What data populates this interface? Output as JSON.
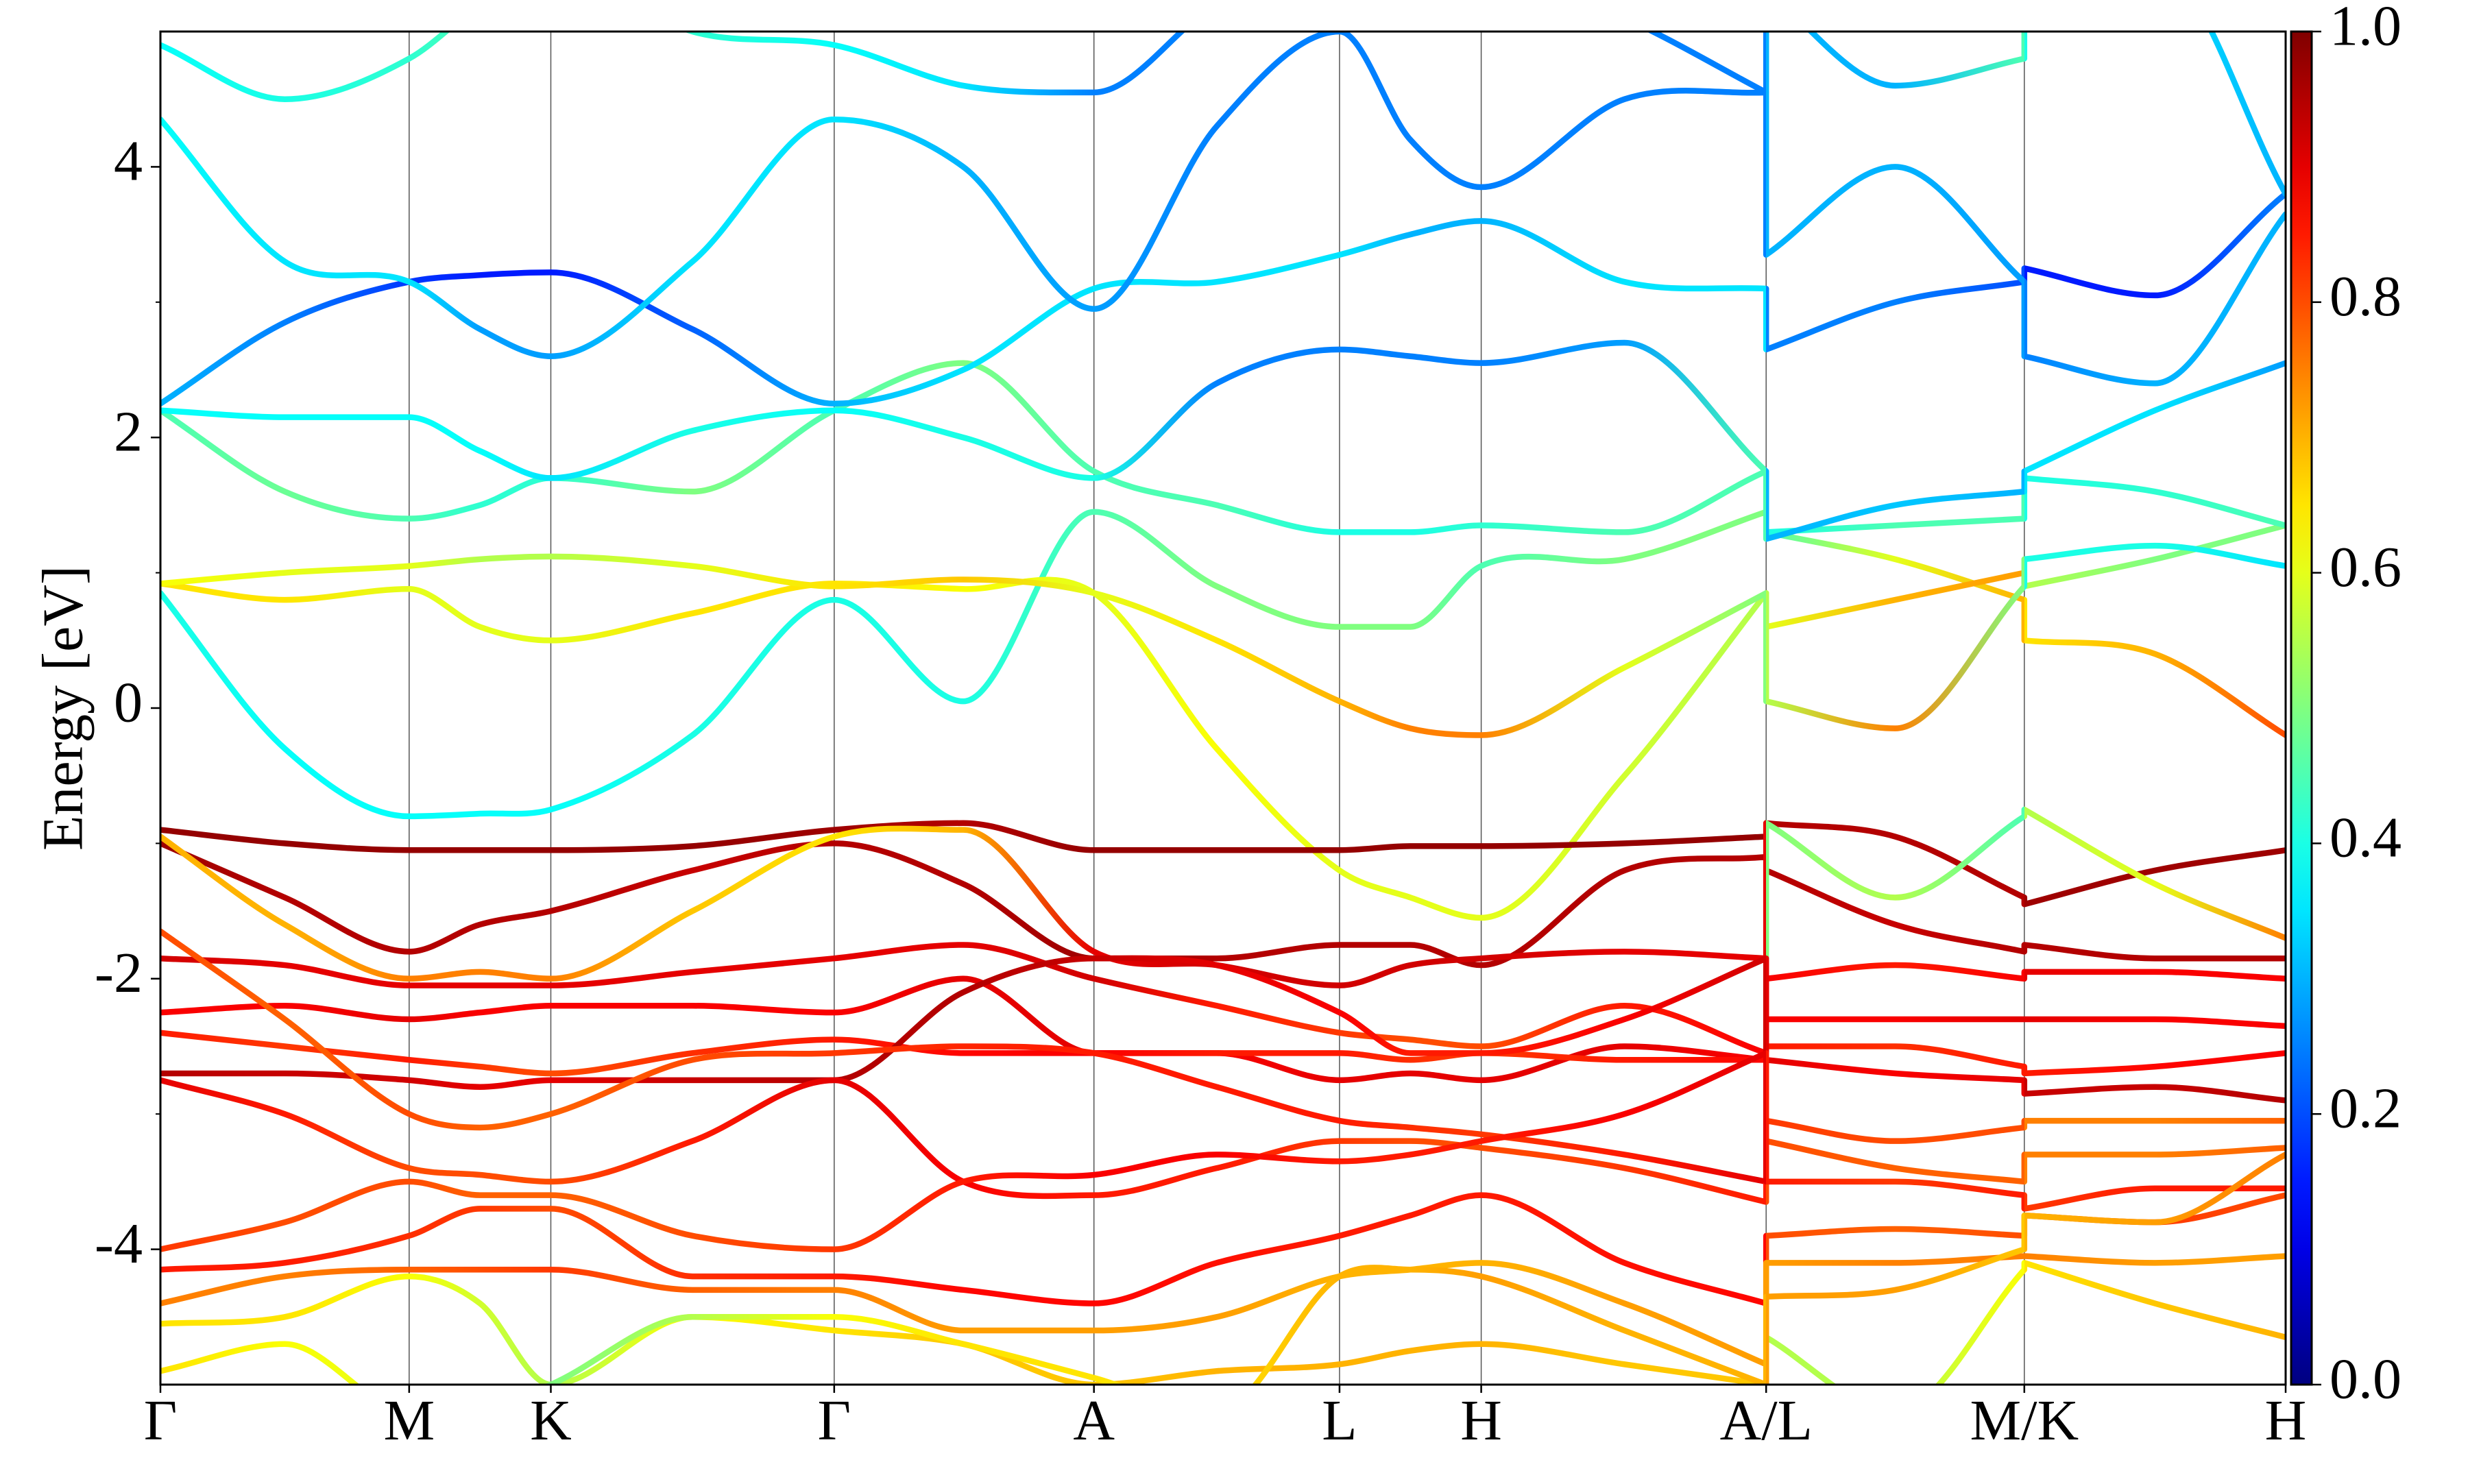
{
  "chart_data": {
    "type": "line",
    "ylabel": "Energy [eV]",
    "x": [
      0,
      0.79,
      1.58,
      2.03,
      2.48,
      3.38,
      4.28,
      5.1,
      5.93,
      6.71,
      7.49,
      7.94,
      8.39,
      9.3,
      10.2,
      10.2,
      11.02,
      11.84,
      11.84,
      12.67,
      13.5
    ],
    "xlim": [
      0,
      13.5
    ],
    "xticks": [
      {
        "value": 0,
        "label": "Γ"
      },
      {
        "value": 1.58,
        "label": "M"
      },
      {
        "value": 2.48,
        "label": "K"
      },
      {
        "value": 4.28,
        "label": "Γ"
      },
      {
        "value": 5.93,
        "label": "A"
      },
      {
        "value": 7.49,
        "label": "L"
      },
      {
        "value": 8.39,
        "label": "H"
      },
      {
        "value": 10.2,
        "label": "A/L"
      },
      {
        "value": 11.84,
        "label": "M/K"
      },
      {
        "value": 13.5,
        "label": "H"
      }
    ],
    "ylim": [
      -5,
      5
    ],
    "yticks": [
      -4,
      -2,
      0,
      2,
      4
    ],
    "yminorticks": [
      -3,
      -1,
      1,
      3
    ],
    "grid": true,
    "colormap": "jet",
    "clim": [
      0,
      1
    ],
    "cticks": [
      {
        "value": 0,
        "label": "0.0"
      },
      0.2,
      0.4,
      0.6,
      0.8,
      {
        "value": 1,
        "label": "1.0"
      }
    ],
    "series": [
      {
        "values": [
          0.85,
          -0.3,
          -0.8,
          -0.78,
          -0.75,
          -0.2,
          0.8,
          0.05,
          1.45,
          0.9,
          0.6,
          0.6,
          1.05,
          1.1,
          1.45,
          1.3,
          1.1,
          0.8,
          0.5,
          0.4,
          -0.2
        ],
        "weights": [
          0.4,
          0.38,
          0.38,
          0.38,
          0.38,
          0.4,
          0.4,
          0.4,
          0.45,
          0.5,
          0.5,
          0.5,
          0.45,
          0.5,
          0.5,
          0.45,
          0.6,
          0.7,
          0.65,
          0.7,
          0.8
        ]
      },
      {
        "values": [
          0.92,
          0.8,
          0.88,
          0.6,
          0.5,
          0.7,
          0.92,
          0.88,
          0.85,
          -0.3,
          -1.2,
          -1.4,
          -1.55,
          -0.5,
          0.85,
          0.6,
          0.8,
          1.0,
          0.9,
          1.1,
          1.35
        ],
        "weights": [
          0.65,
          0.65,
          0.6,
          0.6,
          0.6,
          0.65,
          0.65,
          0.62,
          0.6,
          0.62,
          0.6,
          0.6,
          0.6,
          0.58,
          0.55,
          0.6,
          0.7,
          0.72,
          0.55,
          0.5,
          0.5
        ]
      },
      {
        "values": [
          0.92,
          1.0,
          1.05,
          1.1,
          1.12,
          1.05,
          0.9,
          0.95,
          0.85,
          0.5,
          0.05,
          -0.15,
          -0.2,
          0.3,
          0.85,
          0.05,
          -0.15,
          0.9,
          1.1,
          1.2,
          1.05
        ],
        "weights": [
          0.62,
          0.6,
          0.6,
          0.55,
          0.55,
          0.6,
          0.65,
          0.68,
          0.6,
          0.65,
          0.7,
          0.75,
          0.75,
          0.6,
          0.5,
          0.55,
          0.75,
          0.5,
          0.4,
          0.4,
          0.35
        ]
      },
      {
        "values": [
          2.2,
          1.6,
          1.4,
          1.5,
          1.7,
          1.6,
          2.2,
          2.55,
          1.75,
          1.5,
          1.3,
          1.3,
          1.35,
          1.3,
          1.75,
          1.3,
          1.35,
          1.4,
          1.7,
          1.6,
          1.35
        ],
        "weights": [
          0.45,
          0.48,
          0.45,
          0.42,
          0.42,
          0.5,
          0.45,
          0.5,
          0.45,
          0.45,
          0.4,
          0.4,
          0.42,
          0.45,
          0.45,
          0.4,
          0.45,
          0.45,
          0.4,
          0.42,
          0.45
        ]
      },
      {
        "values": [
          2.2,
          2.15,
          2.15,
          1.9,
          1.7,
          2.05,
          2.2,
          2.0,
          1.7,
          2.4,
          2.65,
          2.6,
          2.55,
          2.7,
          1.75,
          1.25,
          1.5,
          1.6,
          1.75,
          2.2,
          2.55
        ],
        "weights": [
          0.38,
          0.38,
          0.38,
          0.38,
          0.35,
          0.4,
          0.38,
          0.4,
          0.4,
          0.25,
          0.25,
          0.25,
          0.25,
          0.28,
          0.45,
          0.3,
          0.32,
          0.3,
          0.35,
          0.35,
          0.28
        ]
      },
      {
        "values": [
          2.25,
          2.85,
          3.15,
          3.2,
          3.22,
          2.8,
          2.25,
          2.5,
          3.1,
          3.15,
          3.35,
          3.5,
          3.6,
          3.15,
          3.1,
          2.65,
          3.0,
          3.15,
          3.25,
          3.05,
          3.8
        ],
        "weights": [
          0.3,
          0.25,
          0.18,
          0.15,
          0.15,
          0.22,
          0.3,
          0.35,
          0.35,
          0.35,
          0.35,
          0.3,
          0.3,
          0.35,
          0.35,
          0.25,
          0.25,
          0.2,
          0.15,
          0.15,
          0.25
        ]
      },
      {
        "values": [
          4.35,
          3.3,
          3.15,
          2.8,
          2.6,
          3.3,
          4.35,
          4.0,
          2.95,
          4.3,
          5.0,
          4.2,
          3.85,
          4.5,
          4.55,
          3.35,
          4.0,
          3.15,
          2.6,
          2.4,
          3.65
        ],
        "weights": [
          0.38,
          0.35,
          0.35,
          0.28,
          0.28,
          0.35,
          0.35,
          0.3,
          0.28,
          0.25,
          0.25,
          0.25,
          0.25,
          0.25,
          0.25,
          0.3,
          0.3,
          0.28,
          0.25,
          0.3,
          0.3
        ]
      },
      {
        "values": [
          4.9,
          4.5,
          4.8,
          5.2,
          5.5,
          5.0,
          4.9,
          4.6,
          4.55,
          5.2,
          5.5,
          5.5,
          5.5,
          5.1,
          4.55,
          5.3,
          4.6,
          4.8,
          5.3,
          5.5,
          3.8
        ],
        "weights": [
          0.38,
          0.4,
          0.42,
          0.45,
          0.45,
          0.42,
          0.38,
          0.35,
          0.25,
          0.25,
          0.25,
          0.25,
          0.25,
          0.25,
          0.25,
          0.3,
          0.3,
          0.45,
          0.4,
          0.35,
          0.3
        ]
      },
      {
        "values": [
          -0.9,
          -1.0,
          -1.05,
          -1.05,
          -1.05,
          -1.02,
          -0.9,
          -0.85,
          -1.05,
          -1.05,
          -1.05,
          -1.02,
          -1.02,
          -1.0,
          -0.95,
          -0.85,
          -0.95,
          -1.4,
          -1.45,
          -1.2,
          -1.05
        ],
        "weights": [
          0.98,
          0.98,
          0.98,
          0.98,
          0.98,
          0.98,
          0.97,
          0.95,
          0.98,
          0.98,
          0.98,
          0.98,
          0.98,
          0.98,
          0.98,
          0.95,
          0.95,
          0.95,
          0.97,
          0.97,
          0.97
        ]
      },
      {
        "values": [
          -1.0,
          -1.4,
          -1.8,
          -1.6,
          -1.5,
          -1.2,
          -1.0,
          -1.3,
          -1.85,
          -1.85,
          -1.75,
          -1.75,
          -1.9,
          -1.2,
          -1.1,
          -1.2,
          -1.6,
          -1.8,
          -1.75,
          -1.85,
          -1.85
        ],
        "weights": [
          0.97,
          0.95,
          0.95,
          0.95,
          0.95,
          0.93,
          0.95,
          0.95,
          0.97,
          0.95,
          0.95,
          0.95,
          0.95,
          0.95,
          0.95,
          0.95,
          0.93,
          0.95,
          0.95,
          0.95,
          0.95
        ]
      },
      {
        "values": [
          -0.95,
          -1.6,
          -2.0,
          -1.95,
          -2.0,
          -1.5,
          -0.95,
          -0.9,
          -1.8,
          -1.9,
          -2.05,
          -1.9,
          -1.85,
          -1.8,
          -1.85,
          -0.85,
          -1.4,
          -0.8,
          -0.75,
          -1.3,
          -1.7
        ],
        "weights": [
          0.7,
          0.7,
          0.75,
          0.75,
          0.75,
          0.68,
          0.65,
          0.7,
          0.9,
          0.92,
          0.92,
          0.92,
          0.92,
          0.9,
          0.9,
          0.5,
          0.55,
          0.45,
          0.55,
          0.6,
          0.75
        ]
      },
      {
        "values": [
          -1.85,
          -1.9,
          -2.05,
          -2.05,
          -2.05,
          -1.95,
          -1.85,
          -1.75,
          -2.0,
          -2.2,
          -2.4,
          -2.45,
          -2.5,
          -2.2,
          -2.55,
          -2.0,
          -1.9,
          -2.0,
          -1.95,
          -1.95,
          -2.0
        ],
        "weights": [
          0.92,
          0.9,
          0.9,
          0.9,
          0.9,
          0.9,
          0.9,
          0.9,
          0.92,
          0.85,
          0.82,
          0.8,
          0.8,
          0.85,
          0.88,
          0.88,
          0.85,
          0.88,
          0.9,
          0.88,
          0.88
        ]
      },
      {
        "values": [
          -2.25,
          -2.2,
          -2.3,
          -2.25,
          -2.2,
          -2.2,
          -2.25,
          -2.0,
          -2.55,
          -2.55,
          -2.75,
          -2.7,
          -2.75,
          -2.5,
          -2.6,
          -2.3,
          -2.3,
          -2.3,
          -2.3,
          -2.3,
          -2.35
        ],
        "weights": [
          0.88,
          0.88,
          0.9,
          0.88,
          0.88,
          0.88,
          0.88,
          0.9,
          0.9,
          0.88,
          0.9,
          0.9,
          0.9,
          0.9,
          0.88,
          0.88,
          0.88,
          0.9,
          0.9,
          0.88,
          0.88
        ]
      },
      {
        "values": [
          -2.4,
          -2.5,
          -2.6,
          -2.65,
          -2.7,
          -2.55,
          -2.45,
          -2.55,
          -2.55,
          -2.55,
          -2.55,
          -2.6,
          -2.55,
          -2.6,
          -2.6,
          -2.5,
          -2.5,
          -2.65,
          -2.7,
          -2.65,
          -2.55
        ],
        "weights": [
          0.85,
          0.82,
          0.85,
          0.82,
          0.8,
          0.83,
          0.85,
          0.87,
          0.88,
          0.85,
          0.85,
          0.83,
          0.82,
          0.85,
          0.87,
          0.85,
          0.83,
          0.85,
          0.85,
          0.87,
          0.88
        ]
      },
      {
        "values": [
          -2.7,
          -2.7,
          -2.75,
          -2.8,
          -2.75,
          -2.75,
          -2.75,
          -2.1,
          -1.85,
          -1.9,
          -2.25,
          -2.55,
          -2.55,
          -2.3,
          -1.85,
          -2.6,
          -2.7,
          -2.75,
          -2.85,
          -2.8,
          -2.9
        ],
        "weights": [
          0.95,
          0.93,
          0.92,
          0.9,
          0.9,
          0.93,
          0.95,
          0.95,
          0.93,
          0.9,
          0.88,
          0.85,
          0.85,
          0.88,
          0.92,
          0.9,
          0.88,
          0.9,
          0.93,
          0.93,
          0.95
        ]
      },
      {
        "values": [
          -1.65,
          -2.3,
          -3.0,
          -3.1,
          -3.0,
          -2.6,
          -2.55,
          -2.5,
          -2.55,
          -2.8,
          -3.05,
          -3.1,
          -3.15,
          -3.3,
          -3.5,
          -3.05,
          -3.2,
          -3.1,
          -3.05,
          -3.05,
          -3.05
        ],
        "weights": [
          0.8,
          0.78,
          0.8,
          0.78,
          0.78,
          0.8,
          0.82,
          0.84,
          0.85,
          0.85,
          0.85,
          0.83,
          0.82,
          0.85,
          0.9,
          0.82,
          0.8,
          0.8,
          0.75,
          0.75,
          0.78
        ]
      },
      {
        "values": [
          -2.75,
          -3.0,
          -3.4,
          -3.45,
          -3.5,
          -3.2,
          -2.75,
          -3.5,
          -3.6,
          -3.4,
          -3.2,
          -3.2,
          -3.25,
          -3.4,
          -3.65,
          -3.2,
          -3.4,
          -3.5,
          -3.3,
          -3.3,
          -3.25
        ],
        "weights": [
          0.9,
          0.85,
          0.8,
          0.8,
          0.8,
          0.85,
          0.9,
          0.88,
          0.85,
          0.85,
          0.82,
          0.8,
          0.8,
          0.82,
          0.85,
          0.8,
          0.78,
          0.78,
          0.75,
          0.75,
          0.78
        ]
      },
      {
        "values": [
          -4.0,
          -3.8,
          -3.5,
          -3.6,
          -3.6,
          -3.9,
          -4.0,
          -3.5,
          -3.45,
          -3.3,
          -3.35,
          -3.3,
          -3.2,
          -3.0,
          -2.55,
          -3.5,
          -3.5,
          -3.6,
          -3.7,
          -3.55,
          -3.55
        ],
        "weights": [
          0.82,
          0.8,
          0.8,
          0.78,
          0.78,
          0.8,
          0.82,
          0.85,
          0.88,
          0.88,
          0.85,
          0.85,
          0.85,
          0.88,
          0.9,
          0.85,
          0.82,
          0.85,
          0.82,
          0.85,
          0.85
        ]
      },
      {
        "values": [
          -4.15,
          -4.1,
          -3.9,
          -3.7,
          -3.7,
          -4.2,
          -4.2,
          -4.3,
          -4.4,
          -4.1,
          -3.9,
          -3.75,
          -3.6,
          -4.1,
          -4.4,
          -3.9,
          -3.85,
          -3.9,
          -3.75,
          -3.8,
          -3.6
        ],
        "weights": [
          0.85,
          0.85,
          0.83,
          0.82,
          0.8,
          0.83,
          0.85,
          0.87,
          0.87,
          0.86,
          0.85,
          0.85,
          0.85,
          0.86,
          0.87,
          0.8,
          0.78,
          0.8,
          0.8,
          0.82,
          0.8
        ]
      },
      {
        "values": [
          -4.4,
          -4.2,
          -4.15,
          -4.15,
          -4.15,
          -4.3,
          -4.3,
          -4.6,
          -4.6,
          -4.5,
          -4.2,
          -4.15,
          -4.1,
          -4.4,
          -4.85,
          -4.1,
          -4.1,
          -4.05,
          -4.05,
          -4.1,
          -4.05
        ],
        "weights": [
          0.75,
          0.75,
          0.78,
          0.8,
          0.82,
          0.78,
          0.75,
          0.72,
          0.72,
          0.72,
          0.7,
          0.7,
          0.7,
          0.72,
          0.72,
          0.72,
          0.75,
          0.75,
          0.75,
          0.72,
          0.72
        ]
      },
      {
        "values": [
          -4.55,
          -4.5,
          -4.2,
          -4.4,
          -5.0,
          -4.5,
          -4.6,
          -4.7,
          -5.0,
          -4.9,
          -4.85,
          -4.75,
          -4.7,
          -4.85,
          -5.0,
          -4.65,
          -5.2,
          -4.15,
          -4.1,
          -4.4,
          -4.65
        ],
        "weights": [
          0.65,
          0.65,
          0.62,
          0.58,
          0.55,
          0.62,
          0.65,
          0.68,
          0.68,
          0.7,
          0.7,
          0.7,
          0.7,
          0.68,
          0.68,
          0.55,
          0.55,
          0.62,
          0.65,
          0.68,
          0.7
        ]
      },
      {
        "values": [
          -4.9,
          -4.7,
          -5.2,
          -5.2,
          -5.0,
          -4.5,
          -4.5,
          -4.7,
          -4.95,
          -5.2,
          -4.2,
          -4.15,
          -4.2,
          -4.6,
          -5.0,
          -4.35,
          -4.3,
          -4.0,
          -3.75,
          -3.8,
          -3.3
        ],
        "weights": [
          0.65,
          0.62,
          0.6,
          0.55,
          0.5,
          0.55,
          0.62,
          0.65,
          0.65,
          0.65,
          0.7,
          0.7,
          0.72,
          0.7,
          0.7,
          0.72,
          0.72,
          0.68,
          0.7,
          0.72,
          0.75
        ]
      }
    ]
  }
}
